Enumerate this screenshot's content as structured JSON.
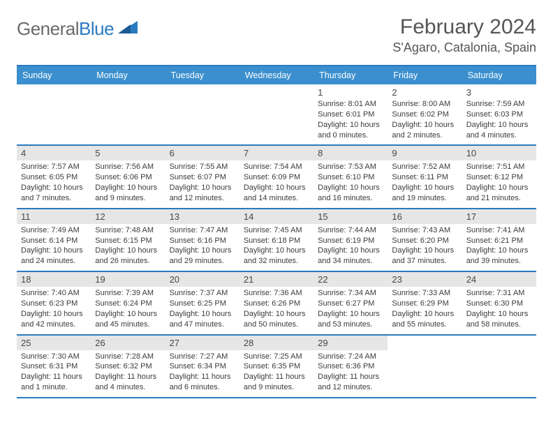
{
  "logo": {
    "word1": "General",
    "word2": "Blue"
  },
  "title": "February 2024",
  "location": "S'Agaro, Catalonia, Spain",
  "colors": {
    "header_bg": "#3b8fce",
    "border": "#2a7ac0",
    "shade_bg": "#e6e6e6",
    "text": "#3b3b3b",
    "logo_gray": "#6b6b6b",
    "logo_blue": "#2a7ac0"
  },
  "dow": [
    "Sunday",
    "Monday",
    "Tuesday",
    "Wednesday",
    "Thursday",
    "Friday",
    "Saturday"
  ],
  "weeks": [
    {
      "shade": false,
      "days": [
        null,
        null,
        null,
        null,
        {
          "n": "1",
          "sr": "Sunrise: 8:01 AM",
          "ss": "Sunset: 6:01 PM",
          "d1": "Daylight: 10 hours",
          "d2": "and 0 minutes."
        },
        {
          "n": "2",
          "sr": "Sunrise: 8:00 AM",
          "ss": "Sunset: 6:02 PM",
          "d1": "Daylight: 10 hours",
          "d2": "and 2 minutes."
        },
        {
          "n": "3",
          "sr": "Sunrise: 7:59 AM",
          "ss": "Sunset: 6:03 PM",
          "d1": "Daylight: 10 hours",
          "d2": "and 4 minutes."
        }
      ]
    },
    {
      "shade": true,
      "days": [
        {
          "n": "4",
          "sr": "Sunrise: 7:57 AM",
          "ss": "Sunset: 6:05 PM",
          "d1": "Daylight: 10 hours",
          "d2": "and 7 minutes."
        },
        {
          "n": "5",
          "sr": "Sunrise: 7:56 AM",
          "ss": "Sunset: 6:06 PM",
          "d1": "Daylight: 10 hours",
          "d2": "and 9 minutes."
        },
        {
          "n": "6",
          "sr": "Sunrise: 7:55 AM",
          "ss": "Sunset: 6:07 PM",
          "d1": "Daylight: 10 hours",
          "d2": "and 12 minutes."
        },
        {
          "n": "7",
          "sr": "Sunrise: 7:54 AM",
          "ss": "Sunset: 6:09 PM",
          "d1": "Daylight: 10 hours",
          "d2": "and 14 minutes."
        },
        {
          "n": "8",
          "sr": "Sunrise: 7:53 AM",
          "ss": "Sunset: 6:10 PM",
          "d1": "Daylight: 10 hours",
          "d2": "and 16 minutes."
        },
        {
          "n": "9",
          "sr": "Sunrise: 7:52 AM",
          "ss": "Sunset: 6:11 PM",
          "d1": "Daylight: 10 hours",
          "d2": "and 19 minutes."
        },
        {
          "n": "10",
          "sr": "Sunrise: 7:51 AM",
          "ss": "Sunset: 6:12 PM",
          "d1": "Daylight: 10 hours",
          "d2": "and 21 minutes."
        }
      ]
    },
    {
      "shade": true,
      "days": [
        {
          "n": "11",
          "sr": "Sunrise: 7:49 AM",
          "ss": "Sunset: 6:14 PM",
          "d1": "Daylight: 10 hours",
          "d2": "and 24 minutes."
        },
        {
          "n": "12",
          "sr": "Sunrise: 7:48 AM",
          "ss": "Sunset: 6:15 PM",
          "d1": "Daylight: 10 hours",
          "d2": "and 26 minutes."
        },
        {
          "n": "13",
          "sr": "Sunrise: 7:47 AM",
          "ss": "Sunset: 6:16 PM",
          "d1": "Daylight: 10 hours",
          "d2": "and 29 minutes."
        },
        {
          "n": "14",
          "sr": "Sunrise: 7:45 AM",
          "ss": "Sunset: 6:18 PM",
          "d1": "Daylight: 10 hours",
          "d2": "and 32 minutes."
        },
        {
          "n": "15",
          "sr": "Sunrise: 7:44 AM",
          "ss": "Sunset: 6:19 PM",
          "d1": "Daylight: 10 hours",
          "d2": "and 34 minutes."
        },
        {
          "n": "16",
          "sr": "Sunrise: 7:43 AM",
          "ss": "Sunset: 6:20 PM",
          "d1": "Daylight: 10 hours",
          "d2": "and 37 minutes."
        },
        {
          "n": "17",
          "sr": "Sunrise: 7:41 AM",
          "ss": "Sunset: 6:21 PM",
          "d1": "Daylight: 10 hours",
          "d2": "and 39 minutes."
        }
      ]
    },
    {
      "shade": true,
      "days": [
        {
          "n": "18",
          "sr": "Sunrise: 7:40 AM",
          "ss": "Sunset: 6:23 PM",
          "d1": "Daylight: 10 hours",
          "d2": "and 42 minutes."
        },
        {
          "n": "19",
          "sr": "Sunrise: 7:39 AM",
          "ss": "Sunset: 6:24 PM",
          "d1": "Daylight: 10 hours",
          "d2": "and 45 minutes."
        },
        {
          "n": "20",
          "sr": "Sunrise: 7:37 AM",
          "ss": "Sunset: 6:25 PM",
          "d1": "Daylight: 10 hours",
          "d2": "and 47 minutes."
        },
        {
          "n": "21",
          "sr": "Sunrise: 7:36 AM",
          "ss": "Sunset: 6:26 PM",
          "d1": "Daylight: 10 hours",
          "d2": "and 50 minutes."
        },
        {
          "n": "22",
          "sr": "Sunrise: 7:34 AM",
          "ss": "Sunset: 6:27 PM",
          "d1": "Daylight: 10 hours",
          "d2": "and 53 minutes."
        },
        {
          "n": "23",
          "sr": "Sunrise: 7:33 AM",
          "ss": "Sunset: 6:29 PM",
          "d1": "Daylight: 10 hours",
          "d2": "and 55 minutes."
        },
        {
          "n": "24",
          "sr": "Sunrise: 7:31 AM",
          "ss": "Sunset: 6:30 PM",
          "d1": "Daylight: 10 hours",
          "d2": "and 58 minutes."
        }
      ]
    },
    {
      "shade": true,
      "days": [
        {
          "n": "25",
          "sr": "Sunrise: 7:30 AM",
          "ss": "Sunset: 6:31 PM",
          "d1": "Daylight: 11 hours",
          "d2": "and 1 minute."
        },
        {
          "n": "26",
          "sr": "Sunrise: 7:28 AM",
          "ss": "Sunset: 6:32 PM",
          "d1": "Daylight: 11 hours",
          "d2": "and 4 minutes."
        },
        {
          "n": "27",
          "sr": "Sunrise: 7:27 AM",
          "ss": "Sunset: 6:34 PM",
          "d1": "Daylight: 11 hours",
          "d2": "and 6 minutes."
        },
        {
          "n": "28",
          "sr": "Sunrise: 7:25 AM",
          "ss": "Sunset: 6:35 PM",
          "d1": "Daylight: 11 hours",
          "d2": "and 9 minutes."
        },
        {
          "n": "29",
          "sr": "Sunrise: 7:24 AM",
          "ss": "Sunset: 6:36 PM",
          "d1": "Daylight: 11 hours",
          "d2": "and 12 minutes."
        },
        null,
        null
      ]
    }
  ]
}
